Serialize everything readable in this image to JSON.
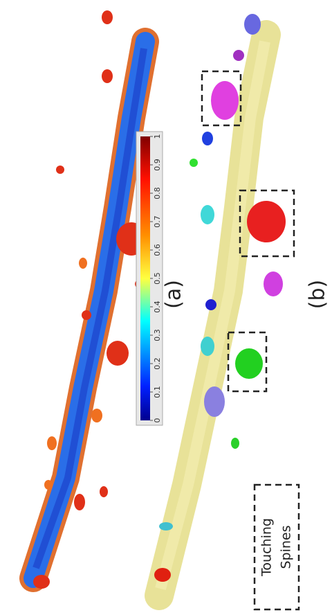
{
  "colorbar": {
    "range": [
      0,
      1
    ],
    "ticks": [
      0,
      0.1,
      0.2,
      0.3,
      0.4,
      0.5,
      0.6,
      0.7,
      0.8,
      0.9,
      1
    ]
  },
  "panels": [
    {
      "label": "(a)"
    },
    {
      "label": "(b)"
    }
  ],
  "legend": {
    "lines": [
      "Touching",
      "Spines"
    ]
  }
}
